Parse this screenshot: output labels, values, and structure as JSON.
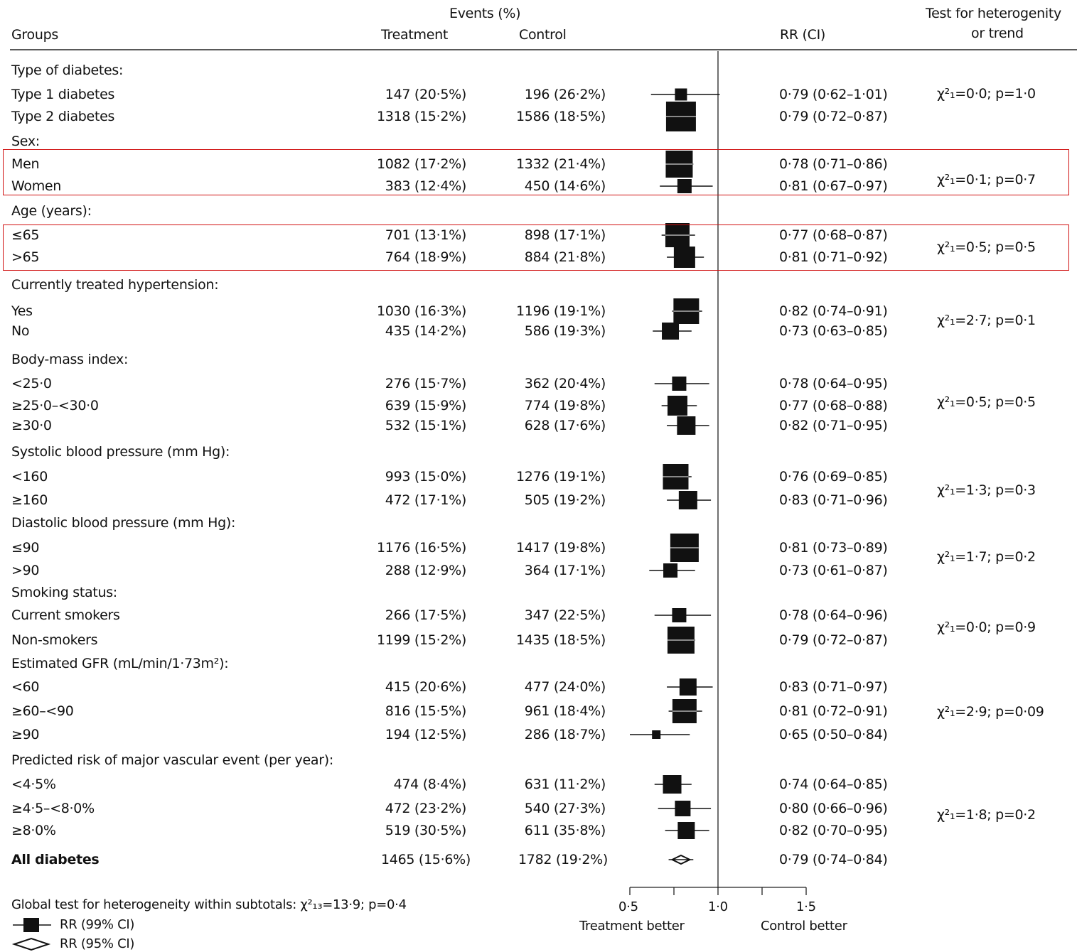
{
  "chart_data": {
    "type": "forest",
    "headers": {
      "groups": "Groups",
      "events": "Events (%)",
      "treatment": "Treatment",
      "control": "Control",
      "rr": "RR (CI)",
      "het_line1": "Test for heterogenity",
      "het_line2": "or trend"
    },
    "x_axis": {
      "ticks": [
        0.5,
        0.75,
        1.0,
        1.25,
        1.5
      ],
      "tick_labels": [
        "0·5",
        "",
        "1·0",
        "",
        "1·5"
      ],
      "left_label": "Treatment better",
      "right_label": "Control better",
      "reference": 1.0
    },
    "sections": [
      {
        "title": "Type of diabetes:",
        "het": "χ²₁=0·0; p=1·0",
        "rows": [
          {
            "label": "Type 1 diabetes",
            "treatment": "147 (20·5%)",
            "control": "196 (26·2%)",
            "rr": 0.79,
            "lo": 0.62,
            "hi": 1.01,
            "rr_text": "0·79 (0·62–1·01)",
            "w": 17
          },
          {
            "label": "Type 2 diabetes",
            "treatment": "1318 (15·2%)",
            "control": "1586 (18·5%)",
            "rr": 0.79,
            "lo": 0.72,
            "hi": 0.87,
            "rr_text": "0·79 (0·72–0·87)",
            "w": 42
          }
        ]
      },
      {
        "title": "Sex:",
        "het": "χ²₁=0·1; p=0·7",
        "rows": [
          {
            "label": "Men",
            "treatment": "1082 (17·2%)",
            "control": "1332 (21·4%)",
            "rr": 0.78,
            "lo": 0.71,
            "hi": 0.86,
            "rr_text": "0·78 (0·71–0·86)",
            "w": 38
          },
          {
            "label": "Women",
            "treatment": "383 (12·4%)",
            "control": "450 (14·6%)",
            "rr": 0.81,
            "lo": 0.67,
            "hi": 0.97,
            "rr_text": "0·81 (0·67–0·97)",
            "w": 20
          }
        ]
      },
      {
        "title": "Age (years):",
        "het": "χ²₁=0·5; p=0·5",
        "rows": [
          {
            "label": "≤65",
            "treatment": "701 (13·1%)",
            "control": "898 (17·1%)",
            "rr": 0.77,
            "lo": 0.68,
            "hi": 0.87,
            "rr_text": "0·77 (0·68–0·87)",
            "w": 34
          },
          {
            "label": ">65",
            "treatment": "764 (18·9%)",
            "control": "884 (21·8%)",
            "rr": 0.81,
            "lo": 0.71,
            "hi": 0.92,
            "rr_text": "0·81 (0·71–0·92)",
            "w": 30
          }
        ]
      },
      {
        "title": "Currently treated hypertension:",
        "het": "χ²₁=2·7; p=0·1",
        "rows": [
          {
            "label": "Yes",
            "treatment": "1030 (16·3%)",
            "control": "1196 (19·1%)",
            "rr": 0.82,
            "lo": 0.74,
            "hi": 0.91,
            "rr_text": "0·82 (0·74–0·91)",
            "w": 36
          },
          {
            "label": "No",
            "treatment": "435 (14·2%)",
            "control": "586 (19·3%)",
            "rr": 0.73,
            "lo": 0.63,
            "hi": 0.85,
            "rr_text": "0·73 (0·63–0·85)",
            "w": 24
          }
        ]
      },
      {
        "title": "Body-mass index:",
        "het": "χ²₁=0·5; p=0·5",
        "rows": [
          {
            "label": "<25·0",
            "treatment": "276 (15·7%)",
            "control": "362 (20·4%)",
            "rr": 0.78,
            "lo": 0.64,
            "hi": 0.95,
            "rr_text": "0·78 (0·64–0·95)",
            "w": 20
          },
          {
            "label": "≥25·0–<30·0",
            "treatment": "639 (15·9%)",
            "control": "774 (19·8%)",
            "rr": 0.77,
            "lo": 0.68,
            "hi": 0.88,
            "rr_text": "0·77 (0·68–0·88)",
            "w": 28
          },
          {
            "label": "≥30·0",
            "treatment": "532 (15·1%)",
            "control": "628 (17·6%)",
            "rr": 0.82,
            "lo": 0.71,
            "hi": 0.95,
            "rr_text": "0·82 (0·71–0·95)",
            "w": 26
          }
        ]
      },
      {
        "title": "Systolic blood pressure (mm Hg):",
        "het": "χ²₁=1·3; p=0·3",
        "rows": [
          {
            "label": "<160",
            "treatment": "993 (15·0%)",
            "control": "1276 (19·1%)",
            "rr": 0.76,
            "lo": 0.69,
            "hi": 0.85,
            "rr_text": "0·76 (0·69–0·85)",
            "w": 36
          },
          {
            "label": "≥160",
            "treatment": "472 (17·1%)",
            "control": "505 (19·2%)",
            "rr": 0.83,
            "lo": 0.71,
            "hi": 0.96,
            "rr_text": "0·83 (0·71–0·96)",
            "w": 26
          }
        ]
      },
      {
        "title": "Diastolic blood pressure (mm Hg):",
        "het": "χ²₁=1·7; p=0·2",
        "rows": [
          {
            "label": "≤90",
            "treatment": "1176 (16·5%)",
            "control": "1417 (19·8%)",
            "rr": 0.81,
            "lo": 0.73,
            "hi": 0.89,
            "rr_text": "0·81 (0·73–0·89)",
            "w": 40
          },
          {
            "label": ">90",
            "treatment": "288 (12·9%)",
            "control": "364 (17·1%)",
            "rr": 0.73,
            "lo": 0.61,
            "hi": 0.87,
            "rr_text": "0·73 (0·61–0·87)",
            "w": 20
          }
        ]
      },
      {
        "title": "Smoking status:",
        "het": "χ²₁=0·0; p=0·9",
        "rows": [
          {
            "label": "Current smokers",
            "treatment": "266 (17·5%)",
            "control": "347 (22·5%)",
            "rr": 0.78,
            "lo": 0.64,
            "hi": 0.96,
            "rr_text": "0·78 (0·64–0·96)",
            "w": 20
          },
          {
            "label": "Non-smokers",
            "treatment": "1199 (15·2%)",
            "control": "1435 (18·5%)",
            "rr": 0.79,
            "lo": 0.72,
            "hi": 0.87,
            "rr_text": "0·79 (0·72–0·87)",
            "w": 38
          }
        ]
      },
      {
        "title": "Estimated GFR (mL/min/1·73m²):",
        "het": "χ²₁=2·9; p=0·09",
        "rows": [
          {
            "label": "<60",
            "treatment": "415 (20·6%)",
            "control": "477 (24·0%)",
            "rr": 0.83,
            "lo": 0.71,
            "hi": 0.97,
            "rr_text": "0·83 (0·71–0·97)",
            "w": 24
          },
          {
            "label": "≥60–<90",
            "treatment": "816 (15·5%)",
            "control": "961 (18·4%)",
            "rr": 0.81,
            "lo": 0.72,
            "hi": 0.91,
            "rr_text": "0·81 (0·72–0·91)",
            "w": 34
          },
          {
            "label": "≥90",
            "treatment": "194 (12·5%)",
            "control": "286 (18·7%)",
            "rr": 0.65,
            "lo": 0.5,
            "hi": 0.84,
            "rr_text": "0·65 (0·50–0·84)",
            "w": 12
          }
        ]
      },
      {
        "title": "Predicted risk of major vascular event (per year):",
        "het": "χ²₁=1·8; p=0·2",
        "rows": [
          {
            "label": "<4·5%",
            "treatment": "474  (8·4%)",
            "control": "631 (11·2%)",
            "rr": 0.74,
            "lo": 0.64,
            "hi": 0.85,
            "rr_text": "0·74 (0·64–0·85)",
            "w": 26
          },
          {
            "label": "≥4·5–<8·0%",
            "treatment": "472 (23·2%)",
            "control": "540 (27·3%)",
            "rr": 0.8,
            "lo": 0.66,
            "hi": 0.96,
            "rr_text": "0·80 (0·66–0·96)",
            "w": 22
          },
          {
            "label": "≥8·0%",
            "treatment": "519 (30·5%)",
            "control": "611 (35·8%)",
            "rr": 0.82,
            "lo": 0.7,
            "hi": 0.95,
            "rr_text": "0·82 (0·70–0·95)",
            "w": 24
          }
        ]
      }
    ],
    "overall": {
      "label": "All diabetes",
      "treatment": "1465 (15·6%)",
      "control": "1782 (19·2%)",
      "rr": 0.79,
      "lo": 0.74,
      "hi": 0.84,
      "rr_text": "0·79 (0·74–0·84)"
    },
    "footer": {
      "global_test": "Global test for heterogeneity within subtotals: χ²₁₃=13·9; p=0·4",
      "legend_square": "RR (99% CI)",
      "legend_diamond": "RR (95% CI)"
    },
    "highlight_color": "#d01010"
  }
}
